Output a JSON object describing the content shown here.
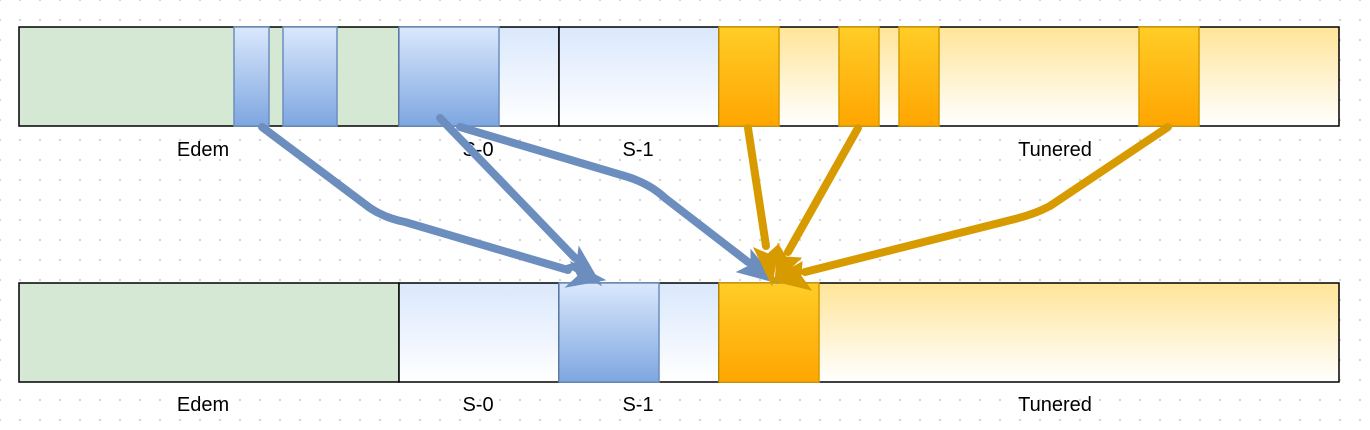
{
  "colors": {
    "eden_fill": "#d5e8d4",
    "survivor_stroke": "#000000",
    "blue_object_stroke": "#6c8ebf",
    "orange_object_stroke": "#d79b00",
    "blue_arrow": "#6c8ebf",
    "orange_arrow": "#d79b00"
  },
  "before": {
    "regions": [
      {
        "id": "eden",
        "label": "Edem"
      },
      {
        "id": "s0",
        "label": "S-0"
      },
      {
        "id": "s1",
        "label": "S-1"
      },
      {
        "id": "tenured",
        "label": "Tunered"
      }
    ]
  },
  "after": {
    "regions": [
      {
        "id": "eden",
        "label": "Edem"
      },
      {
        "id": "s0",
        "label": "S-0"
      },
      {
        "id": "s1",
        "label": "S-1"
      },
      {
        "id": "tenured",
        "label": "Tunered"
      }
    ]
  }
}
